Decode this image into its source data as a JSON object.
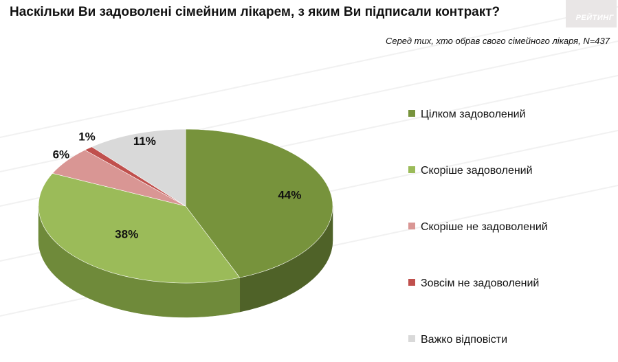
{
  "header": {
    "title": "Наскільки Ви задоволені сімейним лікарем, з яким Ви підписали контракт?",
    "subtitle": "Серед тих, хто обрав  свого сімейного лікаря, N=437",
    "logo_text": "РЕЙТИНГ"
  },
  "chart_data": {
    "type": "pie",
    "title": "Наскільки Ви задоволені сімейним лікарем, з яким Ви підписали контракт?",
    "subtitle": "Серед тих, хто обрав  свого сімейного лікаря, N=437",
    "legend_position": "right",
    "three_d": true,
    "slices": [
      {
        "label": "Цілком задоволений",
        "value": 44,
        "display": "44%",
        "color": "#77933c",
        "side_color": "#4f6228"
      },
      {
        "label": "Скоріше задоволений",
        "value": 38,
        "display": "38%",
        "color": "#9bbb59",
        "side_color": "#6f8a3a"
      },
      {
        "label": "Скоріше не задоволений",
        "value": 6,
        "display": "6%",
        "color": "#d99694",
        "side_color": "#a86a68"
      },
      {
        "label": "Зовсім не задоволений",
        "value": 1,
        "display": "1%",
        "color": "#c0504d",
        "side_color": "#8c3835"
      },
      {
        "label": "Важко відповісти",
        "value": 11,
        "display": "11%",
        "color": "#d9d9d9",
        "side_color": "#a6a6a6"
      }
    ]
  }
}
